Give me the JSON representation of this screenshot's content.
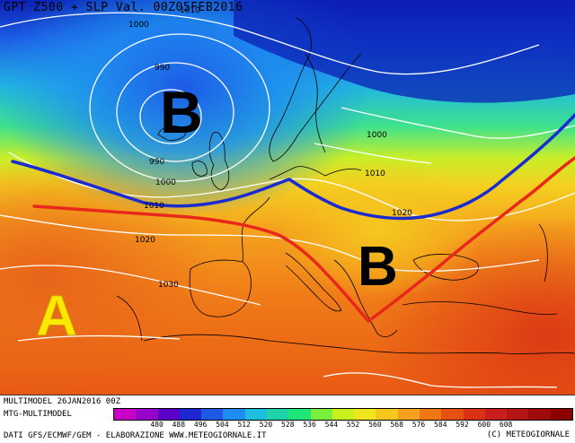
{
  "header": {
    "title": "GPT Z500 + SLP Val. 00Z05FEB2016"
  },
  "map": {
    "pressure_labels": [
      "1000",
      "990",
      "990",
      "1000",
      "1010",
      "1020",
      "1030",
      "1000",
      "1010",
      "1020",
      "1010"
    ],
    "centers": [
      {
        "letter": "B",
        "color": "#000000"
      },
      {
        "letter": "B",
        "color": "#000000"
      },
      {
        "letter": "A",
        "color": "#ffe800"
      }
    ],
    "lines": [
      {
        "name": "blue-trough-line",
        "color": "#1a2bd0"
      },
      {
        "name": "red-ridge-line",
        "color": "#e8281a"
      }
    ]
  },
  "footer": {
    "model_run": "MULTIMODEL 26JAN2016 00Z",
    "model_short": "MTG-MULTIMODEL",
    "data_source": "DATI GFS/ECMWF/GEM - ELABORAZIONE WWW.METEOGIORNALE.IT",
    "copyright": "(C) METEOGIORNALE"
  },
  "legend": {
    "ticks": [
      "480",
      "488",
      "496",
      "504",
      "512",
      "520",
      "528",
      "536",
      "544",
      "552",
      "560",
      "568",
      "576",
      "584",
      "592",
      "600",
      "608"
    ],
    "colors": [
      "#c800c8",
      "#9600c8",
      "#5a00c8",
      "#1e28d2",
      "#1e5ae6",
      "#1e8cf0",
      "#1ebede",
      "#1ed2aa",
      "#1ee678",
      "#78f03c",
      "#c8f01e",
      "#f0e61e",
      "#f5c81e",
      "#f5a01e",
      "#f07814",
      "#e65014",
      "#dc3214",
      "#c81e1e",
      "#b41414",
      "#a00a0a",
      "#8c0000"
    ]
  }
}
